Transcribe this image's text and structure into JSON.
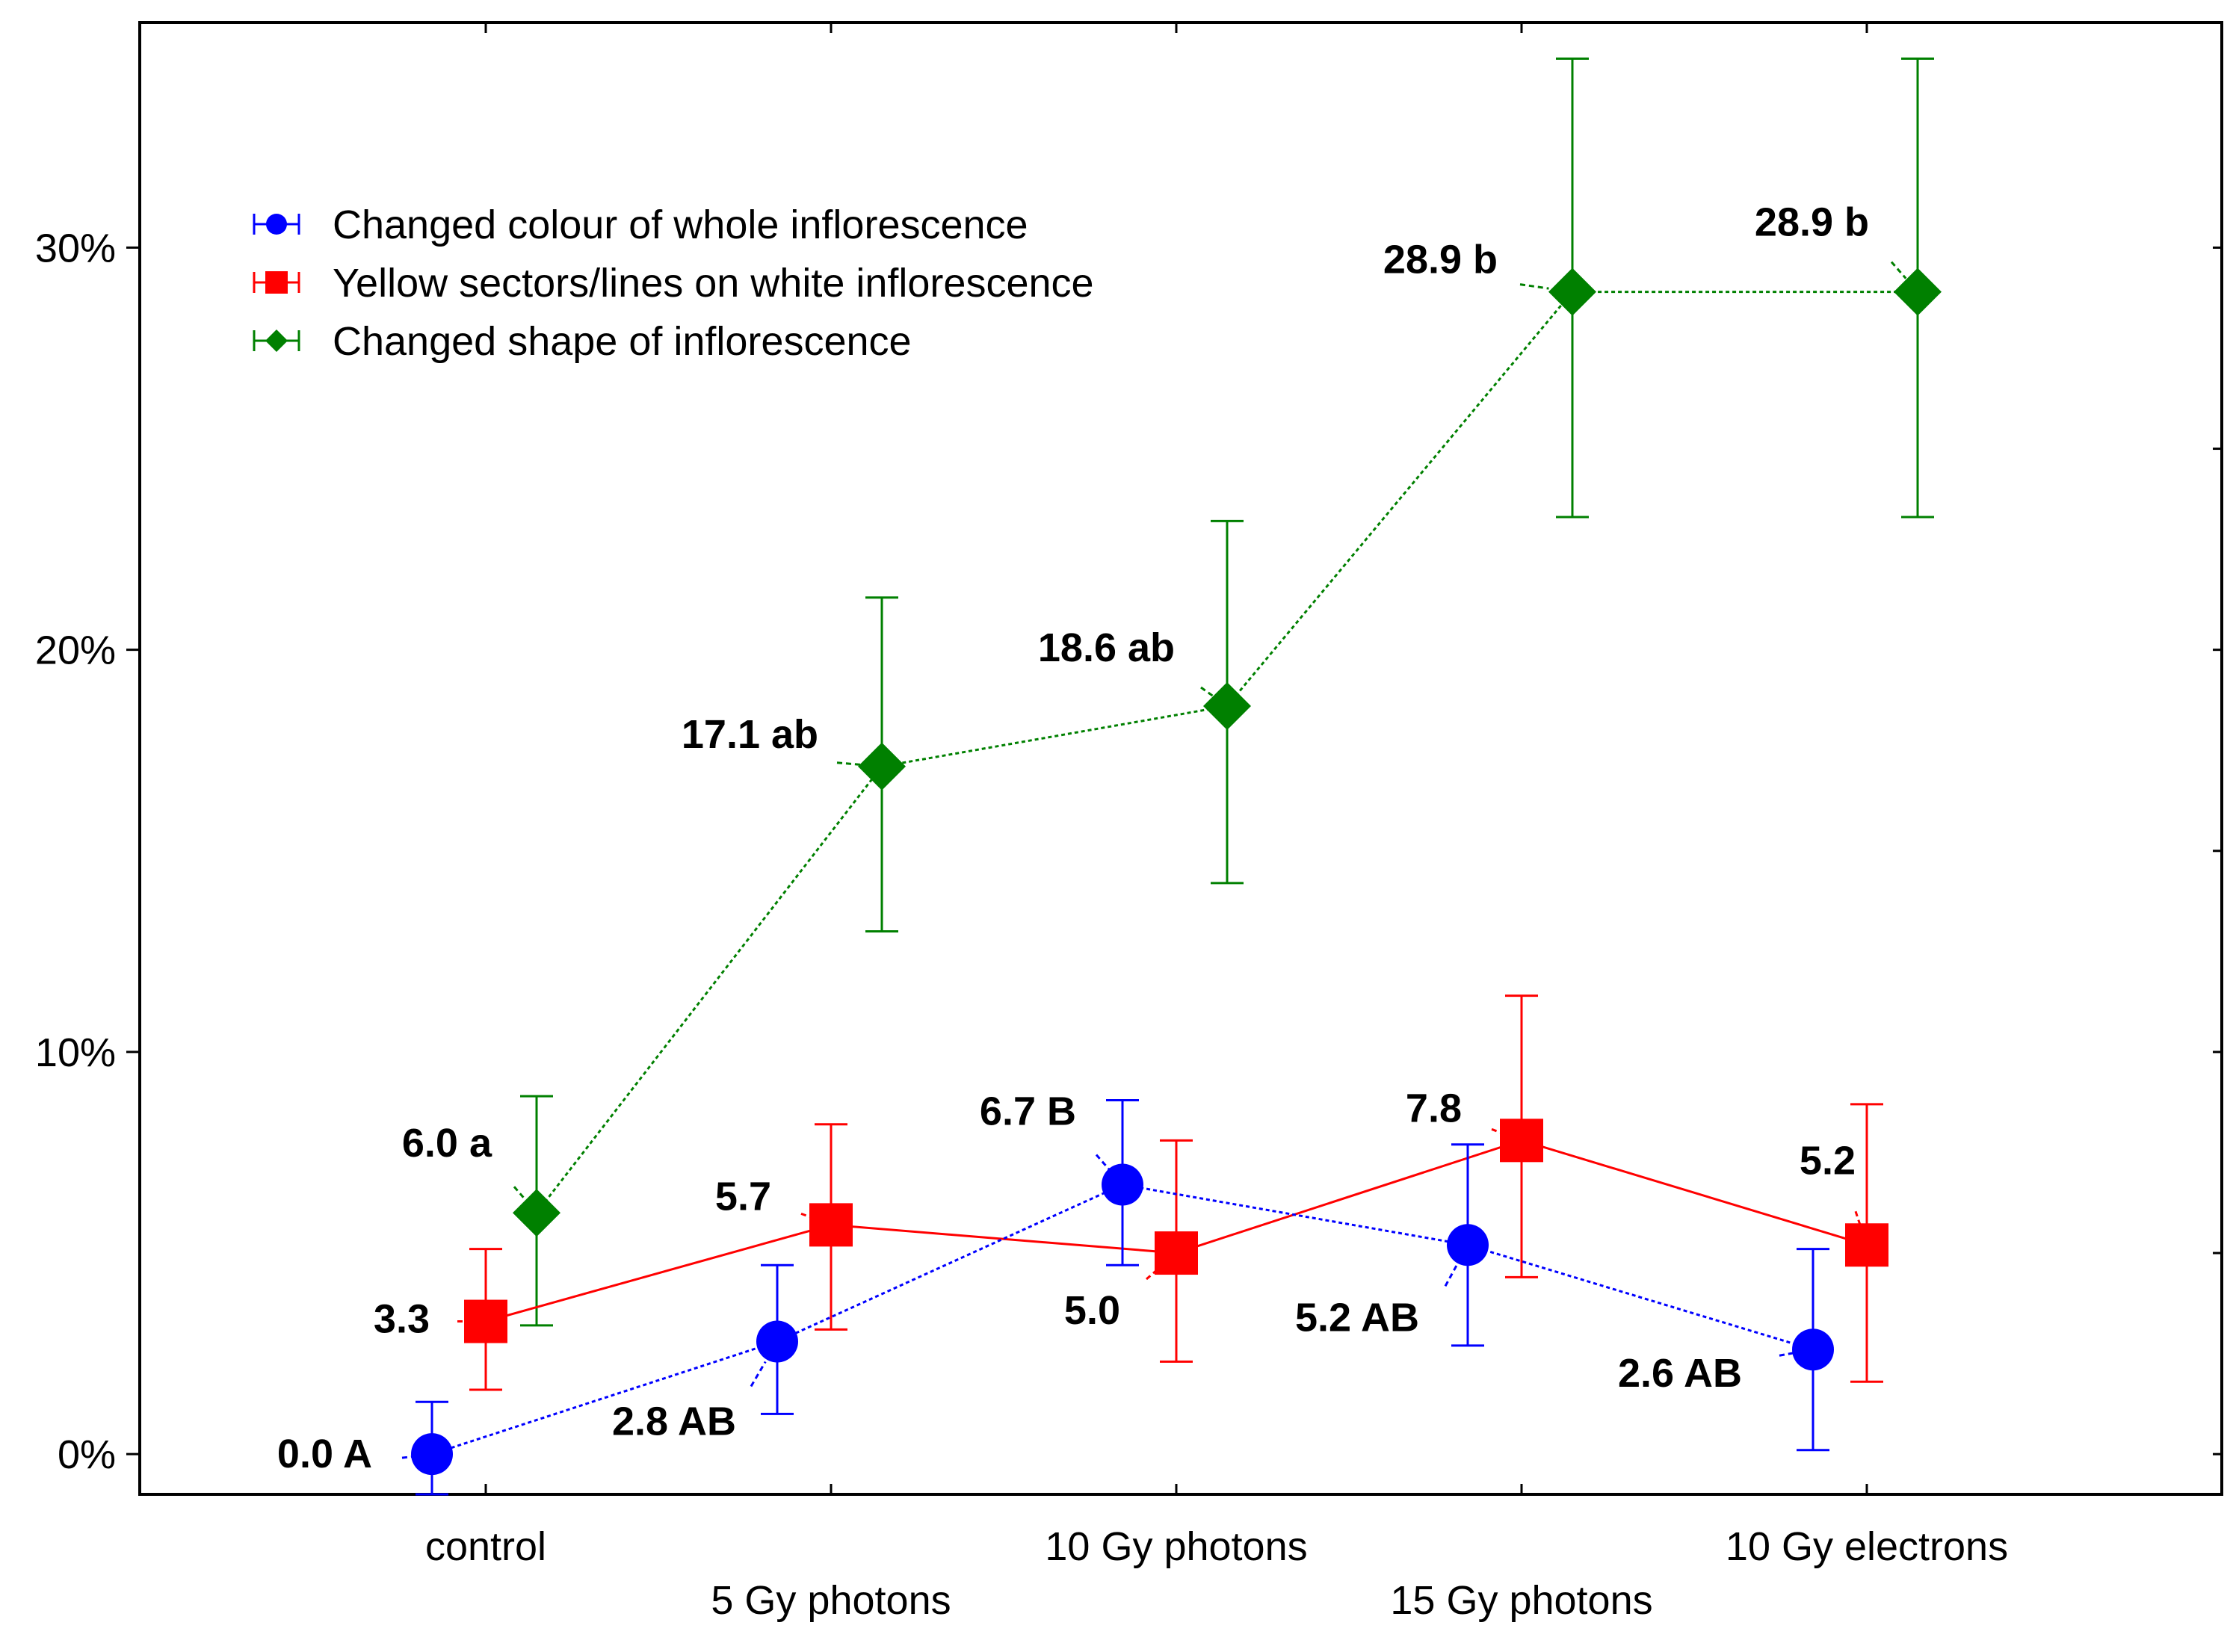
{
  "chart_data": {
    "type": "line",
    "title": "",
    "xlabel": "",
    "ylabel": "",
    "ylim": [
      -1,
      35.6
    ],
    "y_ticks": [
      0,
      10,
      20,
      30
    ],
    "y_tick_labels": [
      "0%",
      "10%",
      "20%",
      "30%"
    ],
    "categories": [
      "control",
      "5 Gy photons",
      "10 Gy photons",
      "15 Gy photons",
      "10 Gy electrons"
    ],
    "legend_position": "top-left",
    "series": [
      {
        "name": "Changed colour of whole inflorescence",
        "color": "#0000ff",
        "marker": "circle",
        "line_style": "dotted",
        "values": [
          0.0,
          2.8,
          6.7,
          5.2,
          2.6
        ],
        "err_low": [
          -1.0,
          1.0,
          4.7,
          2.7,
          0.1
        ],
        "err_high": [
          1.3,
          4.7,
          8.8,
          7.7,
          5.1
        ],
        "labels": [
          "0.0 A",
          "2.8 AB",
          "6.7 B",
          "5.2 AB",
          "2.6 AB"
        ]
      },
      {
        "name": "Yellow sectors/lines on white inflorescence",
        "color": "#ff0000",
        "marker": "square",
        "line_style": "solid",
        "values": [
          3.3,
          5.7,
          5.0,
          7.8,
          5.2
        ],
        "err_low": [
          1.6,
          3.1,
          2.3,
          4.4,
          1.8
        ],
        "err_high": [
          5.1,
          8.2,
          7.8,
          11.4,
          8.7
        ],
        "labels": [
          "3.3",
          "5.7",
          "5.0",
          "7.8",
          "5.2"
        ]
      },
      {
        "name": "Changed shape of inflorescence",
        "color": "#008000",
        "marker": "diamond",
        "line_style": "dotted",
        "values": [
          6.0,
          17.1,
          18.6,
          28.9,
          28.9
        ],
        "err_low": [
          3.2,
          13.0,
          14.2,
          23.3,
          23.3
        ],
        "err_high": [
          8.9,
          21.3,
          23.2,
          34.7,
          34.7
        ],
        "labels": [
          "6.0 a",
          "17.1 ab",
          "18.6 ab",
          "28.9 b",
          "28.9 b"
        ]
      }
    ]
  }
}
